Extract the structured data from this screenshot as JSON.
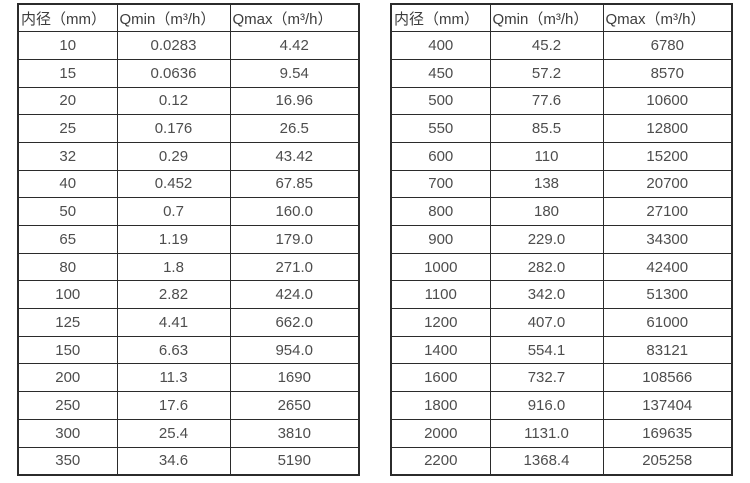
{
  "page": {
    "description_colors": {
      "background": "#ffffff",
      "border": "#2b2b2b",
      "header_text": "#3d3d3d",
      "cell_text": "#4d4d4d"
    }
  },
  "tables": [
    {
      "name": "flow-spec-table-small-diameters",
      "headers": [
        "内径（mm）",
        "Qmin（m³/h）",
        "Qmax（m³/h）"
      ],
      "rows": [
        [
          "10",
          "0.0283",
          "4.42"
        ],
        [
          "15",
          "0.0636",
          "9.54"
        ],
        [
          "20",
          "0.12",
          "16.96"
        ],
        [
          "25",
          "0.176",
          "26.5"
        ],
        [
          "32",
          "0.29",
          "43.42"
        ],
        [
          "40",
          "0.452",
          "67.85"
        ],
        [
          "50",
          "0.7",
          "160.0"
        ],
        [
          "65",
          "1.19",
          "179.0"
        ],
        [
          "80",
          "1.8",
          "271.0"
        ],
        [
          "100",
          "2.82",
          "424.0"
        ],
        [
          "125",
          "4.41",
          "662.0"
        ],
        [
          "150",
          "6.63",
          "954.0"
        ],
        [
          "200",
          "11.3",
          "1690"
        ],
        [
          "250",
          "17.6",
          "2650"
        ],
        [
          "300",
          "25.4",
          "3810"
        ],
        [
          "350",
          "34.6",
          "5190"
        ]
      ]
    },
    {
      "name": "flow-spec-table-large-diameters",
      "headers": [
        "内径（mm）",
        "Qmin（m³/h）",
        "Qmax（m³/h）"
      ],
      "rows": [
        [
          "400",
          "45.2",
          "6780"
        ],
        [
          "450",
          "57.2",
          "8570"
        ],
        [
          "500",
          "77.6",
          "10600"
        ],
        [
          "550",
          "85.5",
          "12800"
        ],
        [
          "600",
          "110",
          "15200"
        ],
        [
          "700",
          "138",
          "20700"
        ],
        [
          "800",
          "180",
          "27100"
        ],
        [
          "900",
          "229.0",
          "34300"
        ],
        [
          "1000",
          "282.0",
          "42400"
        ],
        [
          "1100",
          "342.0",
          "51300"
        ],
        [
          "1200",
          "407.0",
          "61000"
        ],
        [
          "1400",
          "554.1",
          "83121"
        ],
        [
          "1600",
          "732.7",
          "108566"
        ],
        [
          "1800",
          "916.0",
          "137404"
        ],
        [
          "2000",
          "1131.0",
          "169635"
        ],
        [
          "2200",
          "1368.4",
          "205258"
        ]
      ]
    }
  ]
}
